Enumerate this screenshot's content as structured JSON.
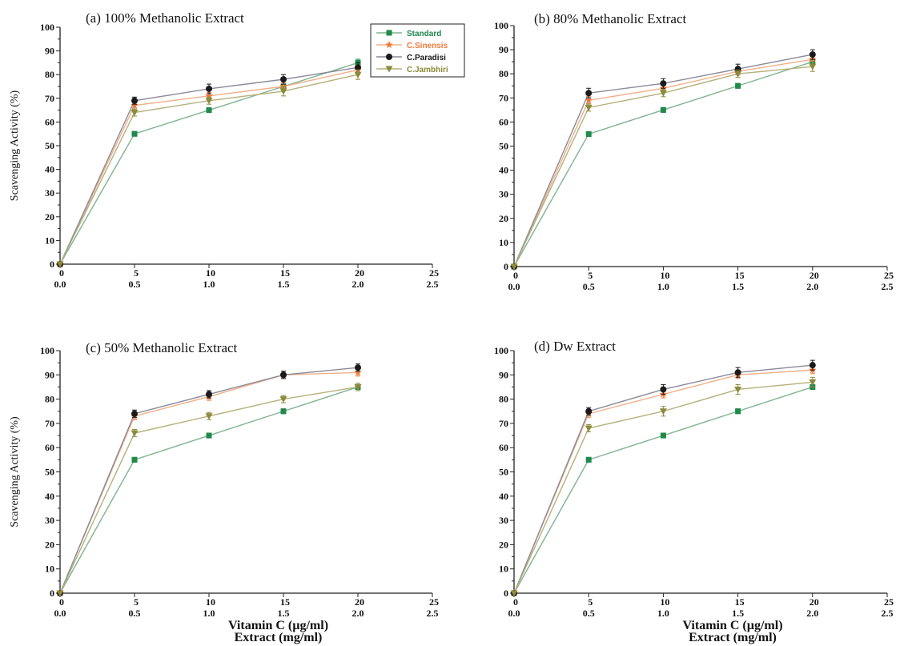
{
  "colors": {
    "Standard": "#1f8a4c",
    "C.Sinensis": "#f07a3a",
    "C.Paradisi": "#1a1a1a",
    "C.Jambhiri": "#8b8a3a"
  },
  "series_style": [
    {
      "name": "Standard",
      "marker": "square",
      "line_color": "#7fb48f"
    },
    {
      "name": "C.Sinensis",
      "marker": "star",
      "line_color": "#f0b08a"
    },
    {
      "name": "C.Paradisi",
      "marker": "circle",
      "line_color": "#8a8a9a"
    },
    {
      "name": "C.Jambhiri",
      "marker": "triangle-down",
      "line_color": "#b5b07a"
    }
  ],
  "legend": {
    "placement": "top-right of panel (a)",
    "entries": [
      "Standard",
      "C.Sinensis",
      "C.Paradisi",
      "C.Jambhiri"
    ]
  },
  "shared_axes": {
    "xlabel_line1": "Vitamin C (µg/ml)",
    "xlabel_line2": "Extract (mg/ml)",
    "ylabel": "Scavenging Activity (%)",
    "xticks_top": [
      "0",
      "5",
      "10",
      "15",
      "20",
      "25"
    ],
    "xticks_bottom": [
      "0.0",
      "0.5",
      "1.0",
      "1.5",
      "2.0",
      "2.5"
    ],
    "yticks": [
      "0",
      "10",
      "20",
      "30",
      "40",
      "50",
      "60",
      "70",
      "80",
      "90",
      "100"
    ]
  },
  "chart_data": [
    {
      "type": "line",
      "title": "(a)  100% Methanolic Extract",
      "ylabel": "Scavenging Activity (%)",
      "xlim": [
        0,
        25
      ],
      "ylim": [
        0,
        100
      ],
      "x": [
        0,
        5,
        10,
        15,
        20
      ],
      "series": [
        {
          "name": "Standard",
          "values": [
            0,
            55,
            65,
            75,
            85
          ],
          "errors": [
            0,
            1,
            1,
            1,
            1.5
          ]
        },
        {
          "name": "C.Sinensis",
          "values": [
            0,
            67,
            71,
            75,
            82
          ],
          "errors": [
            0,
            1.5,
            1.5,
            1.5,
            2
          ]
        },
        {
          "name": "C.Paradisi",
          "values": [
            0,
            69,
            74,
            78,
            83
          ],
          "errors": [
            0,
            1.5,
            2,
            2,
            2
          ]
        },
        {
          "name": "C.Jambhiri",
          "values": [
            0,
            64,
            69,
            73,
            80
          ],
          "errors": [
            0,
            1.5,
            1.5,
            2,
            2
          ]
        }
      ]
    },
    {
      "type": "line",
      "title": "(b)  80% Methanolic Extract",
      "ylabel": "",
      "xlim": [
        0,
        25
      ],
      "ylim": [
        0,
        100
      ],
      "x": [
        0,
        5,
        10,
        15,
        20
      ],
      "series": [
        {
          "name": "Standard",
          "values": [
            0,
            55,
            65,
            75,
            85
          ],
          "errors": [
            0,
            1,
            1,
            1,
            1
          ]
        },
        {
          "name": "C.Sinensis",
          "values": [
            0,
            69,
            74,
            81,
            86
          ],
          "errors": [
            0,
            1.5,
            1.5,
            1.5,
            2
          ]
        },
        {
          "name": "C.Paradisi",
          "values": [
            0,
            72,
            76,
            82,
            88
          ],
          "errors": [
            0,
            2,
            2,
            2,
            2
          ]
        },
        {
          "name": "C.Jambhiri",
          "values": [
            0,
            66,
            72,
            80,
            83
          ],
          "errors": [
            0,
            1.5,
            1.5,
            1.5,
            2
          ]
        }
      ]
    },
    {
      "type": "line",
      "title": "(c)  50% Methanolic Extract",
      "ylabel": "Scavenging Activity (%)",
      "xlim": [
        0,
        25
      ],
      "ylim": [
        0,
        100
      ],
      "x": [
        0,
        5,
        10,
        15,
        20
      ],
      "series": [
        {
          "name": "Standard",
          "values": [
            0,
            55,
            65,
            75,
            85
          ],
          "errors": [
            0,
            1,
            1,
            1,
            1
          ]
        },
        {
          "name": "C.Sinensis",
          "values": [
            0,
            73,
            81,
            90,
            91
          ],
          "errors": [
            0,
            1.5,
            1.5,
            1.5,
            1.5
          ]
        },
        {
          "name": "C.Paradisi",
          "values": [
            0,
            74,
            82,
            90,
            93
          ],
          "errors": [
            0,
            1.5,
            1.5,
            1.5,
            1.5
          ]
        },
        {
          "name": "C.Jambhiri",
          "values": [
            0,
            66,
            73,
            80,
            85
          ],
          "errors": [
            0,
            1.5,
            1.5,
            1.5,
            1.5
          ]
        }
      ]
    },
    {
      "type": "line",
      "title": "(d)  Dw Extract",
      "ylabel": "",
      "xlim": [
        0,
        25
      ],
      "ylim": [
        0,
        100
      ],
      "x": [
        0,
        5,
        10,
        15,
        20
      ],
      "series": [
        {
          "name": "Standard",
          "values": [
            0,
            55,
            65,
            75,
            85
          ],
          "errors": [
            0,
            1,
            1,
            1,
            1
          ]
        },
        {
          "name": "C.Sinensis",
          "values": [
            0,
            74,
            82,
            90,
            92
          ],
          "errors": [
            0,
            1.5,
            1.5,
            1.5,
            1.5
          ]
        },
        {
          "name": "C.Paradisi",
          "values": [
            0,
            75,
            84,
            91,
            94
          ],
          "errors": [
            0,
            1.5,
            2,
            2,
            2
          ]
        },
        {
          "name": "C.Jambhiri",
          "values": [
            0,
            68,
            75,
            84,
            87
          ],
          "errors": [
            0,
            1.5,
            2,
            2,
            2
          ]
        }
      ]
    }
  ]
}
